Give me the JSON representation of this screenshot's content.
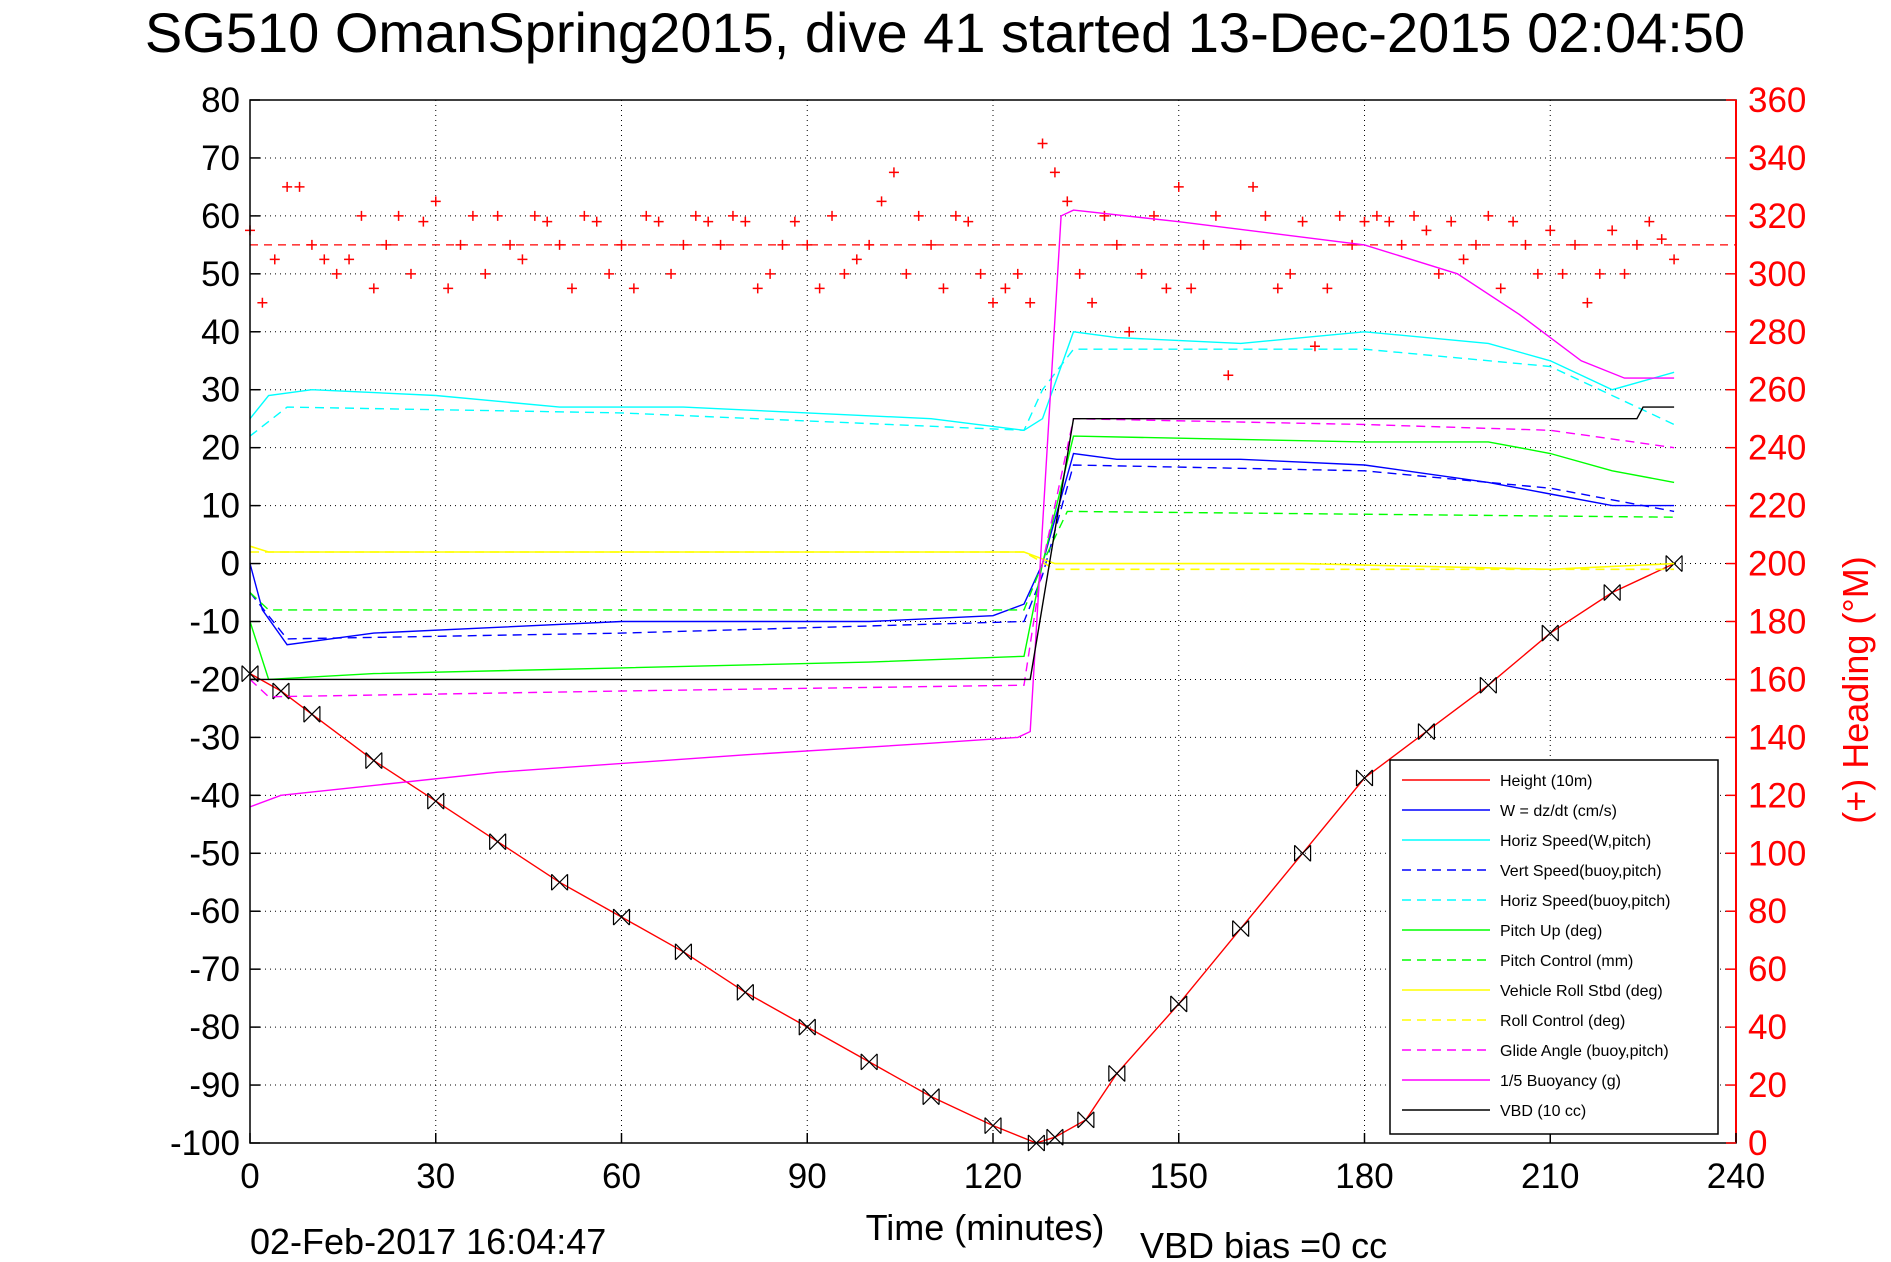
{
  "chart_data": {
    "type": "line",
    "title": "SG510 OmanSpring2015, dive 41 started 13-Dec-2015 02:04:50",
    "xlabel": "Time (minutes)",
    "ylabel": "",
    "y2label": "(+) Heading (°M)",
    "xlim": [
      0,
      240
    ],
    "ylim": [
      -100,
      80
    ],
    "y2lim": [
      0,
      360
    ],
    "x_ticks": [
      "0",
      "30",
      "60",
      "90",
      "120",
      "150",
      "180",
      "210",
      "240"
    ],
    "y_ticks": [
      "80",
      "70",
      "60",
      "50",
      "40",
      "30",
      "20",
      "10",
      "0",
      "-10",
      "-20",
      "-30",
      "-40",
      "-50",
      "-60",
      "-70",
      "-80",
      "-90",
      "-100"
    ],
    "y2_ticks": [
      "360",
      "340",
      "320",
      "300",
      "280",
      "260",
      "240",
      "220",
      "200",
      "180",
      "160",
      "140",
      "120",
      "100",
      "80",
      "60",
      "40",
      "20",
      "0"
    ],
    "grid": true,
    "legend_position": "bottom-right",
    "footer_left": "02-Feb-2017 16:04:47",
    "footer_right": "VBD bias =0 cc",
    "series": [
      {
        "name": "Height (10m)",
        "color": "#ff0000",
        "style": "solid",
        "marker": "x",
        "x": [
          0,
          5,
          10,
          20,
          30,
          40,
          50,
          60,
          70,
          80,
          90,
          100,
          110,
          120,
          127,
          130,
          135,
          140,
          150,
          160,
          170,
          180,
          190,
          200,
          210,
          220,
          230
        ],
        "y": [
          -19,
          -22,
          -26,
          -34,
          -41,
          -48,
          -55,
          -61,
          -67,
          -74,
          -80,
          -86,
          -92,
          -97,
          -100,
          -99,
          -96,
          -88,
          -76,
          -63,
          -50,
          -37,
          -29,
          -21,
          -12,
          -5,
          0
        ]
      },
      {
        "name": "W = dz/dt (cm/s)",
        "color": "#0000ff",
        "style": "solid",
        "x": [
          0,
          2,
          6,
          20,
          40,
          60,
          80,
          100,
          120,
          125,
          128,
          133,
          140,
          160,
          180,
          200,
          210,
          220,
          230
        ],
        "y": [
          0,
          -8,
          -14,
          -12,
          -11,
          -10,
          -10,
          -10,
          -9,
          -7,
          0,
          19,
          18,
          18,
          17,
          14,
          12,
          10,
          10
        ]
      },
      {
        "name": "Horiz Speed(W,pitch)",
        "color": "#00ffff",
        "style": "solid",
        "x": [
          0,
          3,
          10,
          30,
          50,
          70,
          90,
          110,
          125,
          128,
          133,
          140,
          160,
          180,
          200,
          210,
          220,
          230
        ],
        "y": [
          25,
          29,
          30,
          29,
          27,
          27,
          26,
          25,
          23,
          25,
          40,
          39,
          38,
          40,
          38,
          35,
          30,
          33
        ]
      },
      {
        "name": "Vert Speed(buoy,pitch)",
        "color": "#0000ff",
        "style": "dashed",
        "x": [
          0,
          6,
          60,
          125,
          128,
          133,
          180,
          210,
          230
        ],
        "y": [
          -5,
          -13,
          -12,
          -10,
          -2,
          17,
          16,
          13,
          9
        ]
      },
      {
        "name": "Horiz Speed(buoy,pitch)",
        "color": "#00ffff",
        "style": "dashed",
        "x": [
          0,
          6,
          60,
          125,
          128,
          133,
          180,
          210,
          230
        ],
        "y": [
          22,
          27,
          26,
          23,
          30,
          37,
          37,
          34,
          24
        ]
      },
      {
        "name": "Pitch Up (deg)",
        "color": "#00ff00",
        "style": "solid",
        "x": [
          0,
          3,
          20,
          60,
          100,
          125,
          128,
          133,
          180,
          200,
          210,
          220,
          230
        ],
        "y": [
          -10,
          -20,
          -19,
          -18,
          -17,
          -16,
          0,
          22,
          21,
          21,
          19,
          16,
          14
        ]
      },
      {
        "name": "Pitch Control (mm)",
        "color": "#00ff00",
        "style": "dashed",
        "x": [
          0,
          3,
          125,
          128,
          132,
          230
        ],
        "y": [
          -5,
          -8,
          -8,
          0,
          9,
          8
        ]
      },
      {
        "name": "Vehicle Roll Stbd (deg)",
        "color": "#ffff00",
        "style": "solid",
        "x": [
          0,
          3,
          20,
          60,
          100,
          125,
          130,
          170,
          210,
          230
        ],
        "y": [
          3,
          2,
          2,
          2,
          2,
          2,
          0,
          0,
          -1,
          0
        ]
      },
      {
        "name": "Roll Control (deg)",
        "color": "#ffff00",
        "style": "dashed",
        "x": [
          0,
          125,
          130,
          230
        ],
        "y": [
          2,
          2,
          -1,
          -1
        ]
      },
      {
        "name": "Glide Angle (buoy,pitch)",
        "color": "#ff00ff",
        "style": "dashed",
        "x": [
          0,
          3,
          60,
          125,
          128,
          133,
          180,
          210,
          230
        ],
        "y": [
          -20,
          -23,
          -22,
          -21,
          0,
          25,
          24,
          23,
          20
        ]
      },
      {
        "name": "1/5 Buoyancy (g)",
        "color": "#ff00ff",
        "style": "solid",
        "x": [
          0,
          5,
          40,
          80,
          110,
          124,
          126,
          131,
          133,
          150,
          180,
          195,
          205,
          215,
          222,
          230
        ],
        "y": [
          -42,
          -40,
          -36,
          -33,
          -31,
          -30,
          -29,
          60,
          61,
          59,
          55,
          50,
          43,
          35,
          32,
          32
        ]
      },
      {
        "name": "VBD (10 cc)",
        "color": "#000000",
        "style": "solid",
        "x": [
          0,
          125,
          126,
          133,
          224,
          225,
          230
        ],
        "y": [
          -20,
          -20,
          -20,
          25,
          25,
          27,
          27
        ]
      }
    ],
    "heading_series": {
      "name": "(+) Heading",
      "axis": "right",
      "color": "#ff0000",
      "marker": "+",
      "mean": 310,
      "x": [
        0,
        2,
        4,
        6,
        8,
        10,
        12,
        14,
        16,
        18,
        20,
        22,
        24,
        26,
        28,
        30,
        32,
        34,
        36,
        38,
        40,
        42,
        44,
        46,
        48,
        50,
        52,
        54,
        56,
        58,
        60,
        62,
        64,
        66,
        68,
        70,
        72,
        74,
        76,
        78,
        80,
        82,
        84,
        86,
        88,
        90,
        92,
        94,
        96,
        98,
        100,
        102,
        104,
        106,
        108,
        110,
        112,
        114,
        116,
        118,
        120,
        122,
        124,
        126,
        128,
        130,
        132,
        134,
        136,
        138,
        140,
        142,
        144,
        146,
        148,
        150,
        152,
        154,
        156,
        158,
        160,
        162,
        164,
        166,
        168,
        170,
        172,
        174,
        176,
        178,
        180,
        182,
        184,
        186,
        188,
        190,
        192,
        194,
        196,
        198,
        200,
        202,
        204,
        206,
        208,
        210,
        212,
        214,
        216,
        218,
        220,
        222,
        224,
        226,
        228,
        230
      ],
      "y": [
        315,
        290,
        305,
        330,
        330,
        310,
        305,
        300,
        305,
        320,
        295,
        310,
        320,
        300,
        318,
        325,
        295,
        310,
        320,
        300,
        320,
        310,
        305,
        320,
        318,
        310,
        295,
        320,
        318,
        300,
        310,
        295,
        320,
        318,
        300,
        310,
        320,
        318,
        310,
        320,
        318,
        295,
        300,
        310,
        318,
        310,
        295,
        320,
        300,
        305,
        310,
        325,
        335,
        300,
        320,
        310,
        295,
        320,
        318,
        300,
        290,
        295,
        300,
        290,
        345,
        335,
        325,
        300,
        290,
        320,
        310,
        280,
        300,
        320,
        295,
        330,
        295,
        310,
        320,
        265,
        310,
        330,
        320,
        295,
        300,
        318,
        275,
        295,
        320,
        310,
        318,
        320,
        318,
        310,
        320,
        315,
        300,
        318,
        305,
        310,
        320,
        295,
        318,
        310,
        300,
        315,
        300,
        310,
        290,
        300,
        315,
        300,
        310,
        318,
        312,
        305
      ]
    }
  }
}
